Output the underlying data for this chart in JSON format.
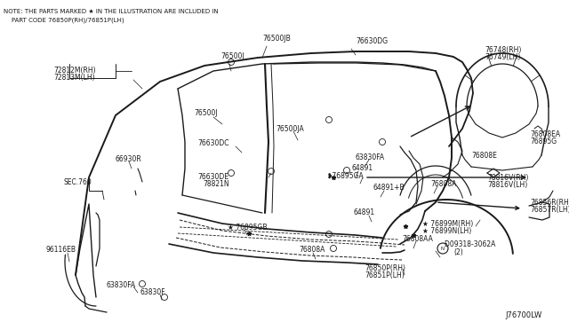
{
  "bg_color": "#ffffff",
  "line_color": "#1a1a1a",
  "note_line1": "NOTE: THE PARTS MARKED ★ IN THE ILLUSTRATION ARE INCLUDED IN",
  "note_line2": "    PART CODE 76850P(RH)/76851P(LH)",
  "diagram_id": "J76700LW"
}
